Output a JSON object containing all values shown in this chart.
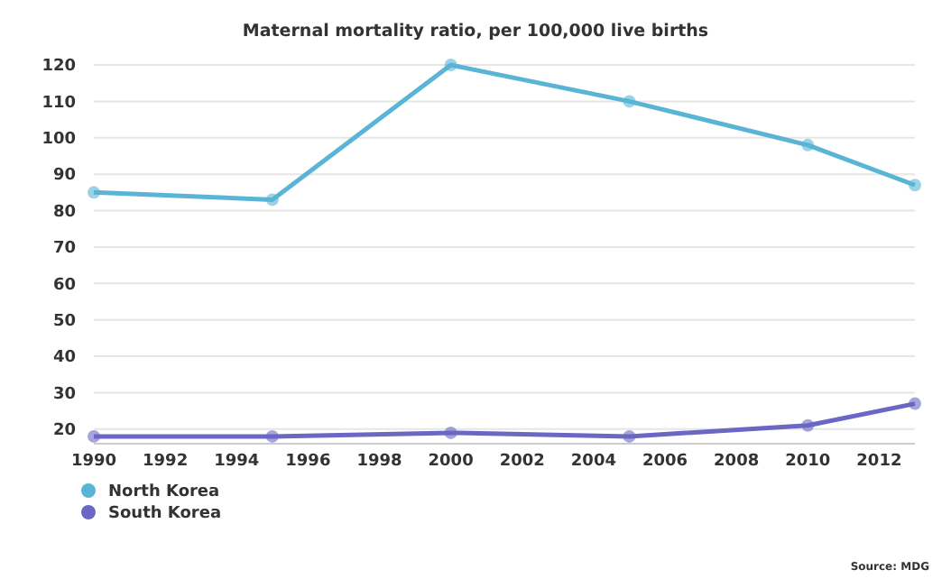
{
  "chart_data": {
    "type": "line",
    "title": "Maternal mortality ratio, per 100,000 live births",
    "annotations": [
      "Source: MDG"
    ],
    "x": [
      1990,
      1995,
      2000,
      2005,
      2010,
      2013
    ],
    "series": [
      {
        "name": "North Korea",
        "color": "#5ab4d6",
        "values": [
          85,
          83,
          120,
          110,
          98,
          87
        ]
      },
      {
        "name": "South Korea",
        "color": "#6a68c4",
        "values": [
          18,
          18,
          19,
          18,
          21,
          27
        ]
      }
    ],
    "xlim": [
      1990,
      2013
    ],
    "xticks": [
      1990,
      1992,
      1994,
      1996,
      1998,
      2000,
      2002,
      2004,
      2006,
      2008,
      2010,
      2012
    ],
    "ylim": [
      16,
      120
    ],
    "yticks": [
      20,
      30,
      40,
      50,
      60,
      70,
      80,
      90,
      100,
      110,
      120
    ],
    "grid": "y",
    "legend": "bottom left",
    "marker": "circle",
    "line_style": "solid"
  }
}
